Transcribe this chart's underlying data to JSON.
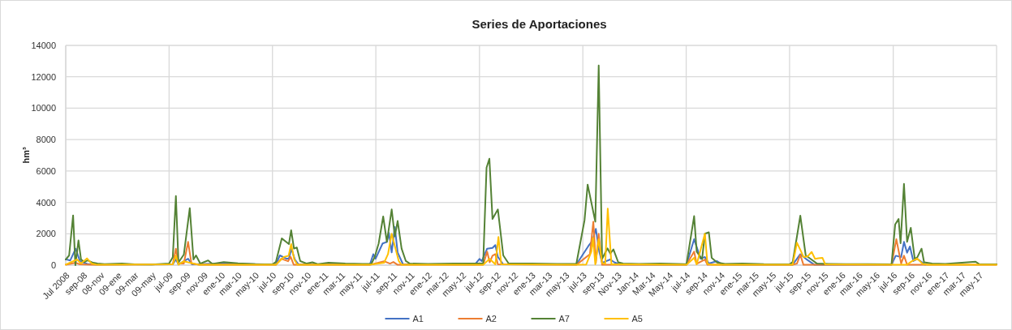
{
  "chart_data": {
    "type": "line",
    "title": "Series de Aportaciones",
    "ylabel": "hm³",
    "xlim": [
      "2008-07-01",
      "2017-07-01"
    ],
    "ylim": [
      0,
      14000
    ],
    "yticks": [
      0,
      2000,
      4000,
      6000,
      8000,
      10000,
      12000,
      14000
    ],
    "grid": true,
    "legend": "bottom",
    "marker": "none",
    "line_style": "solid",
    "xticks": [
      {
        "value": "2008-07-01",
        "label": "Jul 2008"
      },
      {
        "value": "2008-09-01",
        "label": "sep-08"
      },
      {
        "value": "2008-11-01",
        "label": "08-nov"
      },
      {
        "value": "2009-01-01",
        "label": "09-ene"
      },
      {
        "value": "2009-03-01",
        "label": "09-mar"
      },
      {
        "value": "2009-05-01",
        "label": "09-may"
      },
      {
        "value": "2009-07-01",
        "label": "jul-09"
      },
      {
        "value": "2009-09-01",
        "label": "sep-09"
      },
      {
        "value": "2009-11-01",
        "label": "nov-09"
      },
      {
        "value": "2010-01-01",
        "label": "ene-10"
      },
      {
        "value": "2010-03-01",
        "label": "mar-10"
      },
      {
        "value": "2010-05-01",
        "label": "may-10"
      },
      {
        "value": "2010-07-01",
        "label": "jul-10"
      },
      {
        "value": "2010-09-01",
        "label": "sep-10"
      },
      {
        "value": "2010-11-01",
        "label": "nov-10"
      },
      {
        "value": "2011-01-01",
        "label": "ene-11"
      },
      {
        "value": "2011-03-01",
        "label": "mar-11"
      },
      {
        "value": "2011-05-01",
        "label": "may-11"
      },
      {
        "value": "2011-07-01",
        "label": "jul-11"
      },
      {
        "value": "2011-09-01",
        "label": "sep-11"
      },
      {
        "value": "2011-11-01",
        "label": "nov-11"
      },
      {
        "value": "2012-01-01",
        "label": "ene-12"
      },
      {
        "value": "2012-03-01",
        "label": "mar-12"
      },
      {
        "value": "2012-05-01",
        "label": "may-12"
      },
      {
        "value": "2012-07-01",
        "label": "jul-12"
      },
      {
        "value": "2012-09-01",
        "label": "sep-12"
      },
      {
        "value": "2012-11-01",
        "label": "nov-12"
      },
      {
        "value": "2013-01-01",
        "label": "ene-13"
      },
      {
        "value": "2013-03-01",
        "label": "mar-13"
      },
      {
        "value": "2013-05-01",
        "label": "may-13"
      },
      {
        "value": "2013-07-01",
        "label": "jul-13"
      },
      {
        "value": "2013-09-01",
        "label": "sep-13"
      },
      {
        "value": "2013-11-01",
        "label": "Nov-13"
      },
      {
        "value": "2014-01-01",
        "label": "Jan-14"
      },
      {
        "value": "2014-03-01",
        "label": "Mar-14"
      },
      {
        "value": "2014-05-01",
        "label": "May-14"
      },
      {
        "value": "2014-07-01",
        "label": "jul-14"
      },
      {
        "value": "2014-09-01",
        "label": "sep-14"
      },
      {
        "value": "2014-11-01",
        "label": "nov-14"
      },
      {
        "value": "2015-01-01",
        "label": "ene-15"
      },
      {
        "value": "2015-03-01",
        "label": "mar-15"
      },
      {
        "value": "2015-05-01",
        "label": "may-15"
      },
      {
        "value": "2015-07-01",
        "label": "jul-15"
      },
      {
        "value": "2015-09-01",
        "label": "sep-15"
      },
      {
        "value": "2015-11-01",
        "label": "nov-15"
      },
      {
        "value": "2016-01-01",
        "label": "ene-16"
      },
      {
        "value": "2016-03-01",
        "label": "mar-16"
      },
      {
        "value": "2016-05-01",
        "label": "may-16"
      },
      {
        "value": "2016-07-01",
        "label": "jul-16"
      },
      {
        "value": "2016-09-01",
        "label": "sep-16"
      },
      {
        "value": "2016-11-01",
        "label": "nov-16"
      },
      {
        "value": "2017-01-01",
        "label": "ene-17"
      },
      {
        "value": "2017-03-01",
        "label": "mar-17"
      },
      {
        "value": "2017-05-01",
        "label": "may-17"
      }
    ],
    "series": [
      {
        "name": "A1",
        "color": "#4472c4",
        "x": [
          "2008-07-01",
          "2008-07-17",
          "2008-08-05",
          "2008-08-20",
          "2008-09-15",
          "2008-10-15",
          "2009-07-14",
          "2009-07-25",
          "2009-08-03",
          "2009-09-06",
          "2009-09-20",
          "2010-01-01",
          "2010-07-13",
          "2010-07-27",
          "2010-08-20",
          "2010-08-28",
          "2010-09-06",
          "2010-09-18",
          "2010-10-01",
          "2011-06-10",
          "2011-06-22",
          "2011-06-30",
          "2011-07-25",
          "2011-08-09",
          "2011-08-16",
          "2011-08-26",
          "2011-09-06",
          "2011-09-16",
          "2011-10-05",
          "2012-06-15",
          "2012-07-01",
          "2012-07-09",
          "2012-07-28",
          "2012-08-16",
          "2012-08-26",
          "2012-09-04",
          "2012-09-23",
          "2013-06-08",
          "2013-07-21",
          "2013-08-04",
          "2013-08-16",
          "2013-08-28",
          "2013-09-07",
          "2013-10-06",
          "2013-10-20",
          "2013-11-10",
          "2014-07-02",
          "2014-07-29",
          "2014-08-21",
          "2014-09-05",
          "2014-09-19",
          "2014-10-18",
          "2014-11-06",
          "2015-07-12",
          "2015-08-08",
          "2015-08-27",
          "2015-09-26",
          "2016-06-25",
          "2016-07-10",
          "2016-07-29",
          "2016-08-08",
          "2016-08-19",
          "2016-08-29",
          "2016-09-10",
          "2016-09-24",
          "2016-10-22"
        ],
        "values": [
          370,
          300,
          1050,
          260,
          80,
          40,
          50,
          360,
          50,
          410,
          50,
          100,
          40,
          620,
          410,
          410,
          1050,
          360,
          50,
          40,
          700,
          410,
          1380,
          1480,
          2050,
          810,
          2430,
          810,
          50,
          40,
          400,
          250,
          1050,
          1100,
          1280,
          520,
          50,
          40,
          1230,
          1560,
          2310,
          860,
          150,
          360,
          180,
          40,
          30,
          1650,
          410,
          520,
          100,
          260,
          20,
          30,
          700,
          410,
          30,
          30,
          600,
          520,
          1480,
          790,
          1190,
          260,
          400,
          30
        ]
      },
      {
        "name": "A2",
        "color": "#ed7d31",
        "x": [
          "2008-07-01",
          "2008-08-05",
          "2008-08-20",
          "2008-10-01",
          "2009-07-14",
          "2009-07-25",
          "2009-08-03",
          "2009-08-22",
          "2009-09-06",
          "2009-09-18",
          "2009-10-15",
          "2010-07-13",
          "2010-08-01",
          "2010-08-25",
          "2010-09-03",
          "2010-09-14",
          "2011-06-10",
          "2011-07-30",
          "2011-08-20",
          "2011-09-01",
          "2011-09-16",
          "2012-07-14",
          "2012-07-28",
          "2012-08-06",
          "2012-08-16",
          "2012-08-26",
          "2012-09-04",
          "2013-06-08",
          "2013-07-26",
          "2013-08-07",
          "2013-08-16",
          "2013-08-26",
          "2013-09-07",
          "2014-07-02",
          "2014-07-29",
          "2014-08-07",
          "2014-09-05",
          "2014-09-14",
          "2015-07-12",
          "2015-07-27",
          "2015-08-08",
          "2015-08-19",
          "2016-06-25",
          "2016-07-12",
          "2016-07-29",
          "2016-08-08",
          "2016-08-19",
          "2017-07-01"
        ],
        "values": [
          30,
          150,
          50,
          20,
          50,
          1050,
          100,
          100,
          1480,
          100,
          30,
          20,
          410,
          250,
          530,
          30,
          20,
          250,
          100,
          200,
          20,
          30,
          860,
          180,
          600,
          700,
          50,
          20,
          700,
          2770,
          150,
          2000,
          20,
          20,
          860,
          80,
          360,
          20,
          20,
          100,
          660,
          20,
          20,
          1650,
          100,
          600,
          30,
          20
        ]
      },
      {
        "name": "A7",
        "color": "#548235",
        "x": [
          "2008-07-01",
          "2008-07-13",
          "2008-07-27",
          "2008-08-04",
          "2008-08-15",
          "2008-08-24",
          "2008-09-05",
          "2008-09-16",
          "2008-10-06",
          "2008-10-21",
          "2008-11-15",
          "2009-01-15",
          "2009-03-01",
          "2009-05-01",
          "2009-07-01",
          "2009-07-14",
          "2009-07-25",
          "2009-08-03",
          "2009-08-22",
          "2009-09-12",
          "2009-09-25",
          "2009-10-04",
          "2009-10-19",
          "2009-11-16",
          "2009-12-01",
          "2010-01-10",
          "2010-03-01",
          "2010-05-01",
          "2010-07-01",
          "2010-07-13",
          "2010-08-03",
          "2010-08-20",
          "2010-08-28",
          "2010-09-05",
          "2010-09-15",
          "2010-09-25",
          "2010-10-07",
          "2010-10-30",
          "2010-11-19",
          "2010-12-09",
          "2011-01-15",
          "2011-03-15",
          "2011-05-15",
          "2011-06-15",
          "2011-06-27",
          "2011-07-11",
          "2011-07-27",
          "2011-08-09",
          "2011-08-26",
          "2011-09-06",
          "2011-09-16",
          "2011-09-30",
          "2011-10-15",
          "2011-10-29",
          "2012-01-01",
          "2012-04-01",
          "2012-07-01",
          "2012-07-14",
          "2012-07-26",
          "2012-08-05",
          "2012-08-16",
          "2012-09-04",
          "2012-09-23",
          "2012-10-12",
          "2013-01-01",
          "2013-04-01",
          "2013-06-08",
          "2013-07-07",
          "2013-07-18",
          "2013-08-14",
          "2013-08-26",
          "2013-09-07",
          "2013-09-26",
          "2013-10-06",
          "2013-10-17",
          "2013-11-03",
          "2013-11-20",
          "2014-01-15",
          "2014-04-01",
          "2014-06-25",
          "2014-07-02",
          "2014-07-29",
          "2014-08-07",
          "2014-08-26",
          "2014-09-05",
          "2014-09-19",
          "2014-09-29",
          "2014-10-18",
          "2014-11-15",
          "2015-01-15",
          "2015-04-01",
          "2015-07-01",
          "2015-07-12",
          "2015-07-27",
          "2015-08-08",
          "2015-08-27",
          "2015-09-12",
          "2015-10-06",
          "2015-11-15",
          "2016-01-15",
          "2016-04-01",
          "2016-06-25",
          "2016-07-08",
          "2016-07-20",
          "2016-07-27",
          "2016-08-08",
          "2016-08-19",
          "2016-09-01",
          "2016-09-15",
          "2016-09-24",
          "2016-10-09",
          "2016-10-18",
          "2016-11-15",
          "2017-01-01",
          "2017-04-18",
          "2017-05-01",
          "2017-07-01"
        ],
        "values": [
          360,
          620,
          3170,
          0,
          1570,
          360,
          200,
          300,
          150,
          100,
          60,
          100,
          50,
          40,
          100,
          500,
          4400,
          170,
          670,
          3630,
          360,
          620,
          100,
          300,
          80,
          200,
          120,
          60,
          50,
          200,
          1700,
          1460,
          1340,
          2220,
          1060,
          1120,
          260,
          100,
          180,
          60,
          150,
          100,
          80,
          80,
          520,
          1380,
          3100,
          1480,
          3550,
          1830,
          2810,
          1050,
          260,
          100,
          80,
          100,
          100,
          100,
          6210,
          6780,
          2940,
          3550,
          620,
          100,
          100,
          80,
          80,
          2860,
          5130,
          2770,
          12720,
          400,
          1070,
          740,
          1000,
          180,
          100,
          80,
          100,
          60,
          60,
          3120,
          860,
          380,
          2000,
          2090,
          470,
          170,
          80,
          100,
          60,
          50,
          200,
          1820,
          3150,
          620,
          410,
          100,
          80,
          60,
          60,
          50,
          2600,
          2940,
          1400,
          5180,
          1480,
          2380,
          400,
          500,
          1050,
          180,
          100,
          80,
          220,
          60,
          50
        ]
      },
      {
        "name": "A5",
        "color": "#ffc000",
        "x": [
          "2008-07-01",
          "2008-08-10",
          "2008-08-24",
          "2008-09-14",
          "2008-10-01",
          "2008-10-20",
          "2009-07-14",
          "2009-07-25",
          "2009-08-03",
          "2009-08-22",
          "2009-09-06",
          "2009-09-25",
          "2009-10-15",
          "2010-07-13",
          "2010-08-10",
          "2010-08-27",
          "2010-09-05",
          "2010-09-16",
          "2010-09-27",
          "2011-06-10",
          "2011-07-30",
          "2011-08-13",
          "2011-08-26",
          "2011-09-06",
          "2011-09-20",
          "2011-09-30",
          "2012-07-14",
          "2012-08-06",
          "2012-08-26",
          "2012-09-06",
          "2012-09-16",
          "2013-06-08",
          "2013-07-13",
          "2013-07-31",
          "2013-08-06",
          "2013-08-14",
          "2013-08-26",
          "2013-09-07",
          "2013-09-18",
          "2013-09-27",
          "2013-10-10",
          "2014-07-02",
          "2014-07-29",
          "2014-08-07",
          "2014-09-05",
          "2014-09-14",
          "2014-10-01",
          "2015-07-12",
          "2015-07-27",
          "2015-08-10",
          "2015-08-19",
          "2015-09-03",
          "2015-09-17",
          "2015-09-29",
          "2015-10-11",
          "2015-10-25",
          "2015-11-04",
          "2016-06-25",
          "2016-08-19",
          "2016-09-05",
          "2016-09-24",
          "2016-10-13",
          "2016-11-01",
          "2017-07-01"
        ],
        "values": [
          30,
          360,
          100,
          430,
          100,
          20,
          50,
          600,
          30,
          250,
          180,
          100,
          20,
          20,
          520,
          600,
          1340,
          360,
          20,
          20,
          150,
          700,
          2000,
          1230,
          260,
          20,
          20,
          400,
          50,
          1790,
          50,
          20,
          40,
          860,
          1740,
          50,
          1650,
          150,
          80,
          3600,
          50,
          20,
          470,
          50,
          2000,
          80,
          20,
          30,
          1430,
          900,
          520,
          560,
          840,
          400,
          440,
          470,
          50,
          20,
          30,
          250,
          420,
          80,
          20,
          20
        ]
      }
    ]
  }
}
